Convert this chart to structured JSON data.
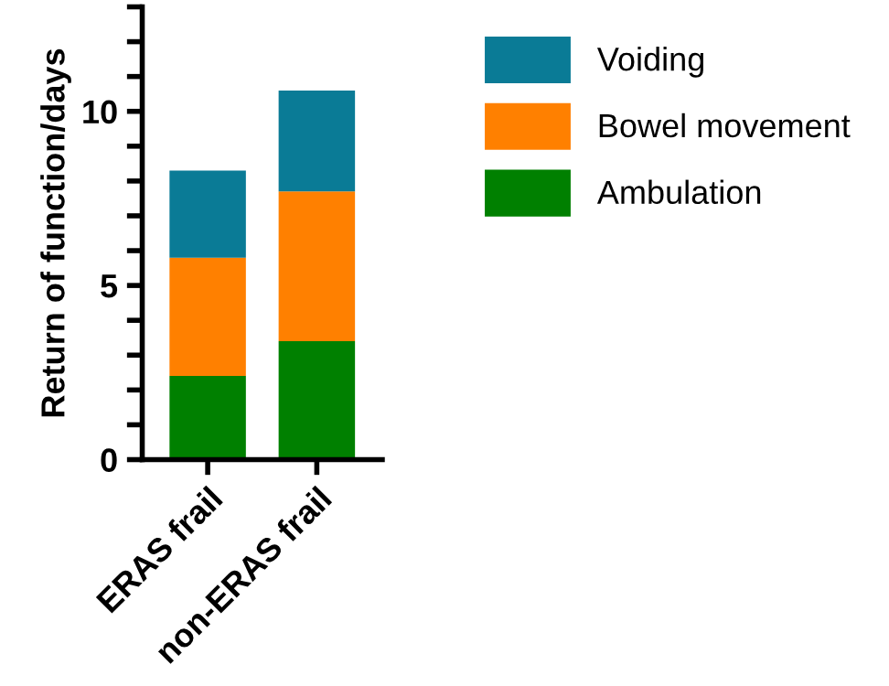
{
  "chart_data": {
    "type": "bar",
    "stacked": true,
    "ylabel": "Return of function/days",
    "categories": [
      "ERAS frail",
      "non-ERAS frail"
    ],
    "series": [
      {
        "name": "Ambulation",
        "color": "#008000",
        "values": [
          2.4,
          3.4
        ]
      },
      {
        "name": "Bowel movement",
        "color": "#ff8000",
        "values": [
          3.4,
          4.3
        ]
      },
      {
        "name": "Voiding",
        "color": "#0a7b96",
        "values": [
          2.5,
          2.9
        ]
      }
    ],
    "ylim": [
      0,
      13
    ],
    "yticks": [
      0,
      {
        "value": 1,
        "label": null
      },
      {
        "value": 2,
        "label": null
      },
      {
        "value": 3,
        "label": null
      },
      {
        "value": 4,
        "label": null
      },
      5,
      {
        "value": 6,
        "label": null
      },
      {
        "value": 7,
        "label": null
      },
      {
        "value": 8,
        "label": null
      },
      {
        "value": 9,
        "label": null
      },
      10,
      {
        "value": 11,
        "label": null
      },
      {
        "value": 12,
        "label": null
      },
      {
        "value": 13,
        "label": null
      }
    ],
    "grid": false,
    "legend": "top right"
  }
}
